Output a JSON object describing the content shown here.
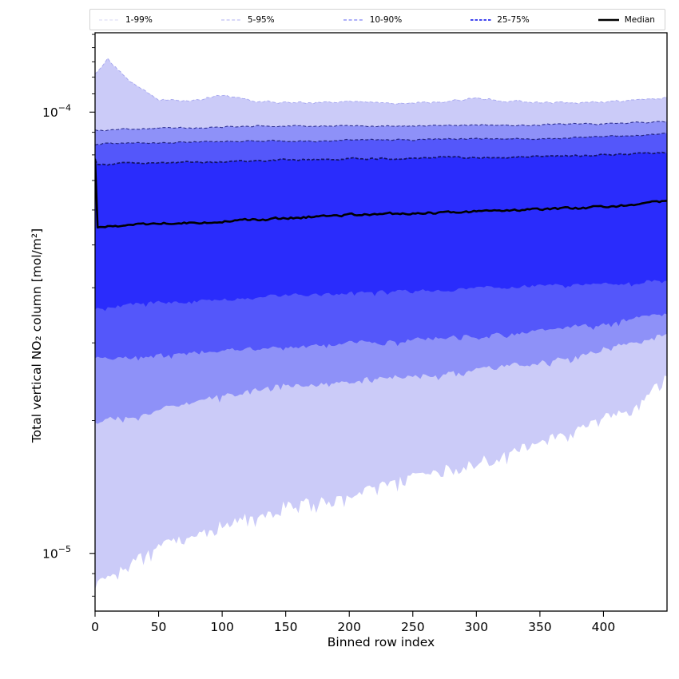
{
  "chart_data": {
    "type": "area",
    "title": "",
    "xlabel": "Binned row index",
    "ylabel": "Total vertical NO₂ column [mol/m²]",
    "yscale": "log",
    "grid": false,
    "xlim": [
      0,
      450
    ],
    "ylim": [
      7.4e-06,
      0.0001513
    ],
    "x_ticks": [
      0,
      50,
      100,
      150,
      200,
      250,
      300,
      350,
      400
    ],
    "y_major_ticks": [
      {
        "value": 0.0001,
        "base": "10",
        "exp": "−4"
      },
      {
        "value": 1e-05,
        "base": "10",
        "exp": "−5"
      }
    ],
    "y_minor_ticks": [
      8e-06,
      9e-06,
      2e-05,
      3e-05,
      4e-05,
      5e-05,
      6e-05,
      7e-05,
      8e-05,
      9e-05,
      0.00011,
      0.00012,
      0.00013,
      0.00014,
      0.00015
    ],
    "legend": {
      "position": "top",
      "entries": [
        {
          "label": "1-99%",
          "color": "#d7d7f3",
          "width": 1.0,
          "dash": "4 2.6"
        },
        {
          "label": "5-95%",
          "color": "#b0b2f1",
          "width": 1.1,
          "dash": "4 2.6"
        },
        {
          "label": "10-90%",
          "color": "#7e81f3",
          "width": 1.3,
          "dash": "4 2.6"
        },
        {
          "label": "25-75%",
          "color": "#4247ee",
          "width": 2.0,
          "dash": "3.5 2"
        },
        {
          "label": "Median",
          "color": "#000000",
          "width": 2.6,
          "dash": "none"
        }
      ]
    },
    "x_anchors": [
      0,
      2,
      10,
      25,
      50,
      75,
      100,
      125,
      150,
      175,
      200,
      225,
      250,
      275,
      300,
      325,
      350,
      375,
      400,
      425,
      450
    ],
    "series": [
      {
        "name": "p99",
        "percentile": 99,
        "rough": 0.004,
        "seed": 11,
        "values": [
          0.000122,
          0.000124,
          0.000132,
          0.000119,
          0.000107,
          0.0001062,
          0.000109,
          0.000106,
          0.000105,
          0.0001052,
          0.0001055,
          0.000105,
          0.000105,
          0.0001055,
          0.0001075,
          0.000106,
          0.000105,
          0.000105,
          0.0001055,
          0.000106,
          0.000108
        ]
      },
      {
        "name": "p95",
        "percentile": 95,
        "rough": 0.0028,
        "seed": 23,
        "values": [
          9.1e-05,
          9.1e-05,
          9.1e-05,
          9.15e-05,
          9.2e-05,
          9.2e-05,
          9.25e-05,
          9.3e-05,
          9.3e-05,
          9.3e-05,
          9.3e-05,
          9.3e-05,
          9.3e-05,
          9.35e-05,
          9.35e-05,
          9.35e-05,
          9.35e-05,
          9.4e-05,
          9.4e-05,
          9.45e-05,
          9.5e-05
        ]
      },
      {
        "name": "p90",
        "percentile": 90,
        "rough": 0.0028,
        "seed": 37,
        "values": [
          8.45e-05,
          8.45e-05,
          8.5e-05,
          8.5e-05,
          8.5e-05,
          8.55e-05,
          8.6e-05,
          8.6e-05,
          8.6e-05,
          8.6e-05,
          8.65e-05,
          8.65e-05,
          8.65e-05,
          8.7e-05,
          8.7e-05,
          8.7e-05,
          8.7e-05,
          8.75e-05,
          8.8e-05,
          8.85e-05,
          8.95e-05
        ]
      },
      {
        "name": "p75",
        "percentile": 75,
        "rough": 0.0032,
        "seed": 51,
        "values": [
          7.8e-05,
          7.62e-05,
          7.6e-05,
          7.65e-05,
          7.65e-05,
          7.7e-05,
          7.7e-05,
          7.75e-05,
          7.8e-05,
          7.8e-05,
          7.85e-05,
          7.85e-05,
          7.85e-05,
          7.9e-05,
          7.9e-05,
          7.9e-05,
          7.95e-05,
          7.95e-05,
          8e-05,
          8.05e-05,
          8.1e-05
        ]
      },
      {
        "name": "p50",
        "percentile": 50,
        "rough": 0.0045,
        "seed": 67,
        "values": [
          7.8e-05,
          5.5e-05,
          5.5e-05,
          5.55e-05,
          5.6e-05,
          5.62e-05,
          5.65e-05,
          5.7e-05,
          5.75e-05,
          5.8e-05,
          5.85e-05,
          5.88e-05,
          5.9e-05,
          5.92e-05,
          5.95e-05,
          6e-05,
          6.02e-05,
          6.05e-05,
          6.1e-05,
          6.18e-05,
          6.3e-05
        ]
      },
      {
        "name": "p25",
        "percentile": 25,
        "rough": 0.007,
        "seed": 83,
        "spike_p": 0.2,
        "spike_amp": 0.006,
        "values": [
          3.6e-05,
          3.6e-05,
          3.6e-05,
          3.65e-05,
          3.7e-05,
          3.72e-05,
          3.75e-05,
          3.8e-05,
          3.85e-05,
          3.85e-05,
          3.9e-05,
          3.92e-05,
          3.95e-05,
          3.95e-05,
          4e-05,
          4e-05,
          4.05e-05,
          4.05e-05,
          4.1e-05,
          4.1e-05,
          4.15e-05
        ]
      },
      {
        "name": "p10",
        "percentile": 10,
        "rough": 0.008,
        "seed": 97,
        "spike_p": 0.25,
        "spike_amp": 0.008,
        "values": [
          2.78e-05,
          2.78e-05,
          2.76e-05,
          2.78e-05,
          2.8e-05,
          2.85e-05,
          2.87e-05,
          2.9e-05,
          2.92e-05,
          2.95e-05,
          3e-05,
          3e-05,
          3.05e-05,
          3.1e-05,
          3.1e-05,
          3.15e-05,
          3.2e-05,
          3.25e-05,
          3.3e-05,
          3.4e-05,
          3.5e-05
        ]
      },
      {
        "name": "p5",
        "percentile": 5,
        "rough": 0.01,
        "seed": 113,
        "spike_p": 0.3,
        "spike_amp": 0.012,
        "values": [
          1.97e-05,
          1.97e-05,
          2e-05,
          2.05e-05,
          2.1e-05,
          2.2e-05,
          2.28e-05,
          2.33e-05,
          2.4e-05,
          2.42e-05,
          2.45e-05,
          2.5e-05,
          2.52e-05,
          2.55e-05,
          2.6e-05,
          2.65e-05,
          2.7e-05,
          2.8e-05,
          2.9e-05,
          3e-05,
          3.15e-05
        ]
      },
      {
        "name": "p1",
        "percentile": 1,
        "rough": 0.014,
        "seed": 131,
        "spike_p": 0.5,
        "spike_amp": 0.025,
        "values": [
          8.6e-06,
          8.6e-06,
          8.8e-06,
          9.5e-06,
          1.05e-05,
          1.1e-05,
          1.18e-05,
          1.22e-05,
          1.3e-05,
          1.32e-05,
          1.35e-05,
          1.45e-05,
          1.5e-05,
          1.55e-05,
          1.62e-05,
          1.7e-05,
          1.8e-05,
          1.9e-05,
          2.05e-05,
          2.2e-05,
          2.5e-05
        ]
      }
    ],
    "bands": [
      {
        "label": "1-99%",
        "low": "p1",
        "high": "p99",
        "fill": "#cbcbf8",
        "edge_color": "#a4a5ef",
        "edge_width": 0.9,
        "edge_dash": "4 2.6"
      },
      {
        "label": "5-95%",
        "low": "p5",
        "high": "p95",
        "fill": "#8e91f8",
        "edge_color": "#2f3192",
        "edge_width": 1.1,
        "edge_dash": "4 2.6"
      },
      {
        "label": "10-90%",
        "low": "p10",
        "high": "p90",
        "fill": "#5457fa",
        "edge_color": "#232580",
        "edge_width": 1.2,
        "edge_dash": "4 2.6"
      },
      {
        "label": "25-75%",
        "low": "p25",
        "high": "p75",
        "fill": "#2a2cfc",
        "edge_color": "#131465",
        "edge_width": 1.7,
        "edge_dash": "4 2.2"
      }
    ],
    "median": {
      "label": "Median",
      "series": "p50",
      "color": "#000000",
      "width": 2.6
    },
    "axis_color": "#000000"
  }
}
